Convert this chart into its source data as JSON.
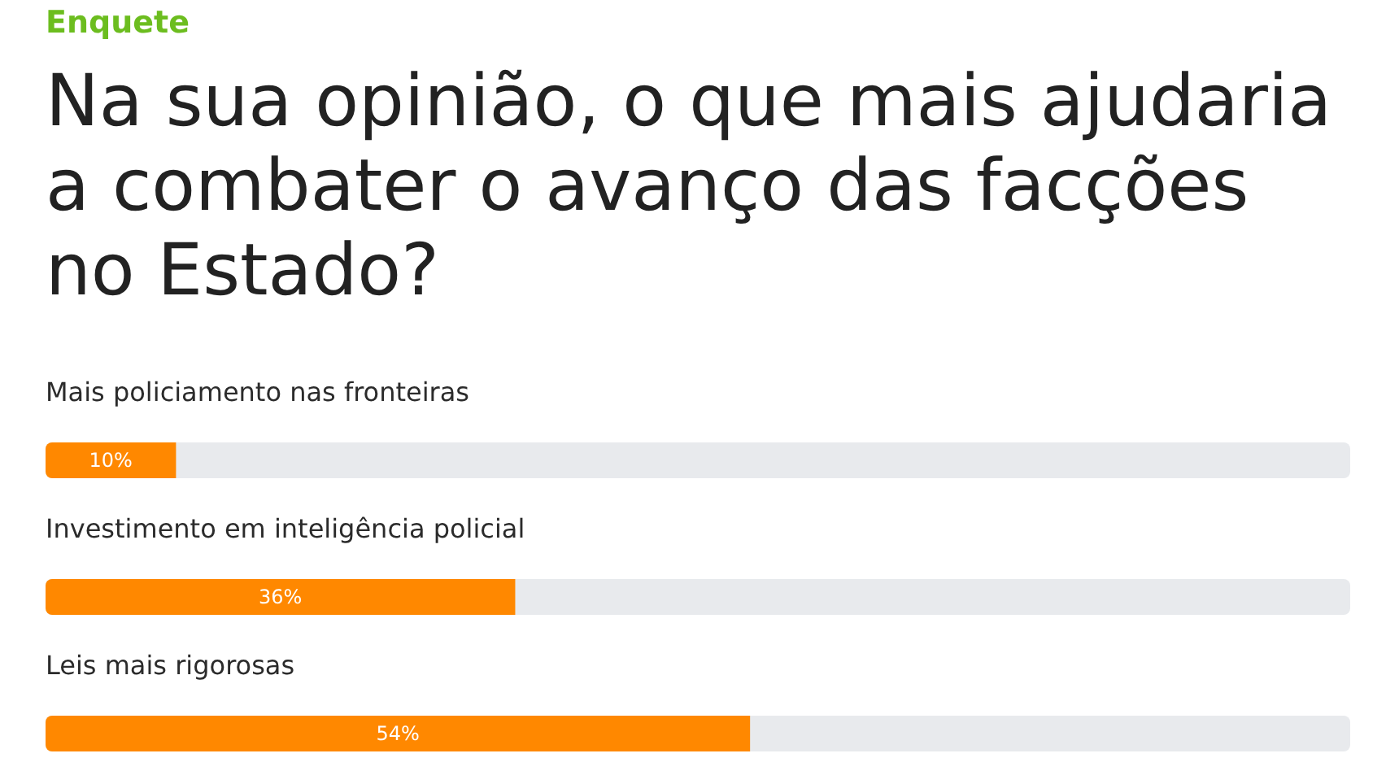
{
  "chart_data": {
    "type": "bar",
    "orientation": "horizontal",
    "annotations": [
      "Enquete"
    ],
    "title": "Na sua opinião, o que mais ajudaria a combater o avanço das facções no Estado?",
    "categories": [
      "Mais policiamento nas fronteiras",
      "Investimento em inteligência policial",
      "Leis mais rigorosas"
    ],
    "values": [
      10,
      36,
      54
    ],
    "value_labels": [
      "10%",
      "36%",
      "54%"
    ],
    "color": "#ff8800",
    "xlim": [
      0,
      100
    ],
    "tick_labels": "y"
  }
}
